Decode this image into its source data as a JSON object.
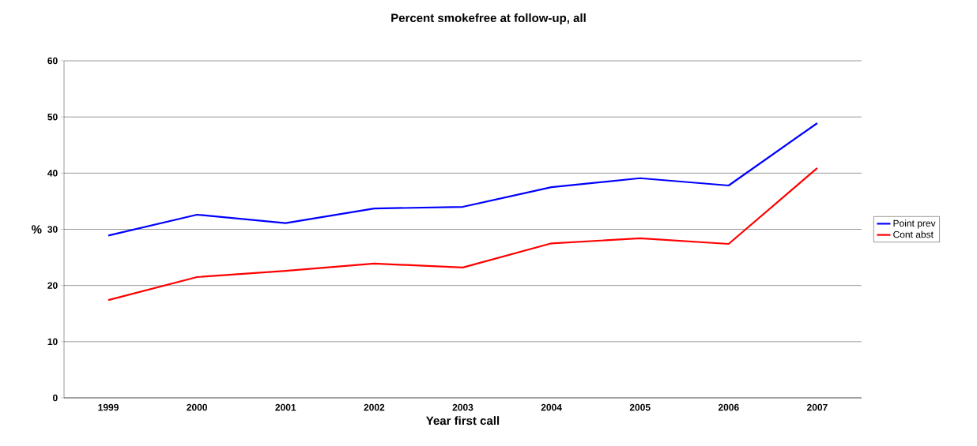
{
  "chart_data": {
    "type": "line",
    "title": "Percent smokefree at follow-up, all",
    "xlabel": "Year first call",
    "ylabel": "%",
    "categories": [
      "1999",
      "2000",
      "2001",
      "2002",
      "2003",
      "2004",
      "2005",
      "2006",
      "2007"
    ],
    "series": [
      {
        "name": "Point prev",
        "color": "#0000ff",
        "values": [
          28.9,
          32.6,
          31.1,
          33.7,
          34.0,
          37.5,
          39.1,
          37.8,
          48.9
        ]
      },
      {
        "name": "Cont abst",
        "color": "#ff0000",
        "values": [
          17.4,
          21.5,
          22.6,
          23.9,
          23.2,
          27.5,
          28.4,
          27.4,
          40.9
        ]
      }
    ],
    "ylim": [
      0,
      60
    ],
    "yticks": [
      0,
      10,
      20,
      30,
      40,
      50,
      60
    ],
    "grid": "y",
    "legend": "right",
    "marker": "none",
    "line_style": "solid"
  }
}
